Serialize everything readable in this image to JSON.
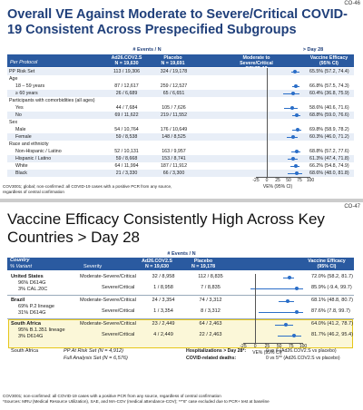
{
  "slide1": {
    "tag": "CO-46",
    "title": "Overall VE Against Moderate to Severe/Critical COVID-19 Consistent Across Prespecified Subgroups",
    "header": {
      "events_n": "# Events / N",
      "day": "> Day 28",
      "per_protocol": "Per Protocol",
      "col_ad26": "Ad26.COV2.S\nN = 19,630",
      "col_placebo": "Placebo\nN = 19,691",
      "col_mod": "Moderate to\nSevere/Critical COVID-19",
      "col_ve": "Vaccine Efficacy\n(95% CI)"
    },
    "rows": [
      {
        "label": "PP Risk Set",
        "ad26": "113 / 19,306",
        "placebo": "324 / 19,178",
        "ve": "65.5% (57.2, 74.4)",
        "band": true,
        "point": 65.5,
        "lo": 57.2,
        "hi": 74.4
      },
      {
        "label": "Age",
        "cat": true
      },
      {
        "label": "18 – 59 years",
        "ad26": "87 / 12,617",
        "placebo": "259 / 12,527",
        "ve": "66.8% (57.5, 74.3)",
        "indent": true,
        "point": 66.8,
        "lo": 57.5,
        "hi": 74.3
      },
      {
        "label": "≥ 60 years",
        "ad26": "26 / 6,689",
        "placebo": "65 / 6,651",
        "ve": "60.4% (36.8, 75.9)",
        "indent": true,
        "band": true,
        "point": 60.4,
        "lo": 36.8,
        "hi": 75.9
      },
      {
        "label": "Participants with comorbidities (all ages)",
        "cat": true
      },
      {
        "label": "Yes",
        "ad26": "44 / 7,684",
        "placebo": "105 / 7,626",
        "ve": "58.6% (40.6, 71.6)",
        "indent": true,
        "point": 58.6,
        "lo": 40.6,
        "hi": 71.6
      },
      {
        "label": "No",
        "ad26": "69 / 11,622",
        "placebo": "219 / 11,552",
        "ve": "68.8% (59.0, 76.6)",
        "indent": true,
        "band": true,
        "point": 68.8,
        "lo": 59.0,
        "hi": 76.6
      },
      {
        "label": "Sex",
        "cat": true
      },
      {
        "label": "Male",
        "ad26": "54 / 10,764",
        "placebo": "176 / 10,649",
        "ve": "69.8% (58.9, 78.2)",
        "indent": true,
        "point": 69.8,
        "lo": 58.9,
        "hi": 78.2
      },
      {
        "label": "Female",
        "ad26": "59 / 8,538",
        "placebo": "148 / 8,525",
        "ve": "60.3% (46.0, 71.2)",
        "indent": true,
        "band": true,
        "point": 60.3,
        "lo": 46.0,
        "hi": 71.2
      },
      {
        "label": "Race and ethnicity",
        "cat": true
      },
      {
        "label": "Non-Hispanic / Latino",
        "ad26": "52 / 10,131",
        "placebo": "163 / 9,957",
        "ve": "68.8% (57.2, 77.6)",
        "indent": true,
        "point": 68.8,
        "lo": 57.2,
        "hi": 77.6
      },
      {
        "label": "Hispanic / Latino",
        "ad26": "59 / 8,668",
        "placebo": "153 / 8,741",
        "ve": "61.3% (47.4, 71.8)",
        "indent": true,
        "band": true,
        "point": 61.3,
        "lo": 47.4,
        "hi": 71.8
      },
      {
        "label": "White",
        "ad26": "64 / 11,994",
        "placebo": "187 / 11,912",
        "ve": "66.2% (54.8, 74.9)",
        "indent": true,
        "point": 66.2,
        "lo": 54.8,
        "hi": 74.9
      },
      {
        "label": "Black",
        "ad26": "21 / 3,330",
        "placebo": "66 / 3,300",
        "ve": "68.6% (48.0, 81.8)",
        "indent": true,
        "band": true,
        "point": 68.6,
        "lo": 48.0,
        "hi": 81.8
      }
    ],
    "axis_ticks": [
      "-25",
      "0",
      "25",
      "50",
      "75",
      "100"
    ],
    "axis_label": "VE% (95% CI)",
    "footnote": "COV3001; global; non-confirmed: all COVID-19 cases with a positive PCR from any source, regardless of central confirmation"
  },
  "slide2": {
    "tag": "CO-47",
    "title": "Vaccine Efficacy Consistently High Across Key Countries > Day 28",
    "header": {
      "events_n": "# Events / N",
      "country": "Country",
      "variant": "% Variant",
      "severity": "Severity",
      "col_ad26": "Ad26.COV2.S\nN = 19,630",
      "col_placebo": "Placebo\nN = 19,178",
      "col_ve": "Vaccine Efficacy\n(95% CI)"
    },
    "countries": [
      {
        "name": "United States",
        "variants": [
          "96% D614G",
          "3% CAL.20C"
        ],
        "rows": [
          {
            "severity": "Moderate-Severe/Critical",
            "ad26": "32 / 8,958",
            "placebo": "112 / 8,835",
            "ve": "72.0% (58.2, 81.7)",
            "point": 72.0,
            "lo": 58.2,
            "hi": 81.7
          },
          {
            "severity": "Severe/Critical",
            "ad26": "1 / 8,958",
            "placebo": "7 / 8,835",
            "ve": "85.9% (-9.4, 99.7)",
            "point": 85.9,
            "lo": -9.4,
            "hi": 99.7
          }
        ]
      },
      {
        "name": "Brazil",
        "variants": [
          "69% P.2 lineage",
          "31% D614G"
        ],
        "rows": [
          {
            "severity": "Moderate-Severe/Critical",
            "ad26": "24 / 3,354",
            "placebo": "74 / 3,312",
            "ve": "68.1% (48.8, 80.7)",
            "point": 68.1,
            "lo": 48.8,
            "hi": 80.7
          },
          {
            "severity": "Severe/Critical",
            "ad26": "1 / 3,354",
            "placebo": "8 / 3,312",
            "ve": "87.6% (7.8, 99.7)",
            "point": 87.6,
            "lo": 7.8,
            "hi": 99.7
          }
        ]
      },
      {
        "name": "South Africa",
        "variants": [
          "95% B.1.351 lineage",
          "3% D614G"
        ],
        "rows": [
          {
            "severity": "Moderate-Severe/Critical",
            "ad26": "23 / 2,449",
            "placebo": "64 / 2,463",
            "ve": "64.0% (41.2, 78.7)",
            "point": 64.0,
            "lo": 41.2,
            "hi": 78.7
          },
          {
            "severity": "Severe/Critical",
            "ad26": "4 / 2,449",
            "placebo": "22 / 2,463",
            "ve": "81.7% (46.2, 95.4)",
            "point": 81.7,
            "lo": 46.2,
            "hi": 95.4
          }
        ]
      }
    ],
    "axis_ticks": [
      "-25",
      "0",
      "25",
      "50",
      "75",
      "100"
    ],
    "axis_label": "VE% (95% CI)",
    "sa_summary": {
      "country": "South Africa",
      "pp": "PP At Risk Set (N = 4,912)",
      "fas": "Full Analysis Set (N = 6,576)",
      "hosp": "Hospitalizations > Day 28*:",
      "hosp_val": "0 vs 6 (Ad26.COV2.S vs placebo)",
      "deaths": "COVID-related deaths:",
      "deaths_val": "0 vs 5** (Ad26.COV2.S vs placebo)"
    },
    "footnote": "COV3001; non-confirmed: all COVID-19 cases with a positive PCR from any source, regardless of central confirmation\n*Sources: MRU (Medical Resource Utilization), SAE, and MA-COV (medical attendance-COV); **\"6\" case excluded due to PCR+ test at baseline"
  }
}
